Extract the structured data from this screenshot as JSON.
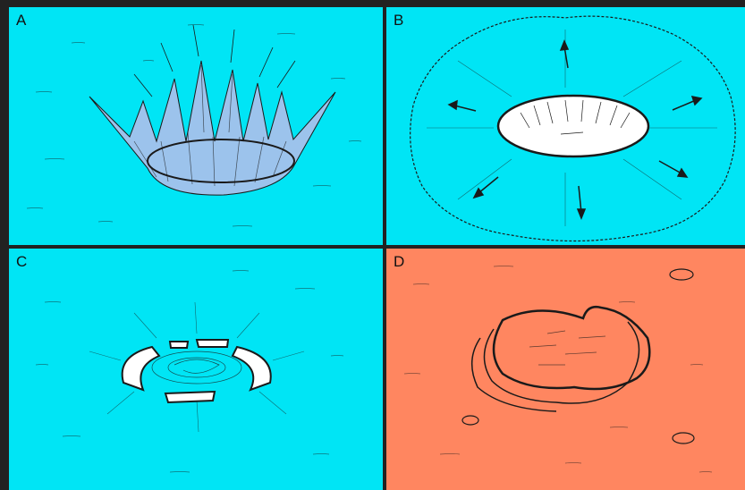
{
  "panels": [
    {
      "id": "A",
      "label": "A",
      "fill": "#00e5f5"
    },
    {
      "id": "B",
      "label": "B",
      "fill": "#00e5f5"
    },
    {
      "id": "C",
      "label": "C",
      "fill": "#00e5f5"
    },
    {
      "id": "D",
      "label": "D",
      "fill": "#ff8660"
    }
  ],
  "colors": {
    "water": "#00e5f5",
    "land": "#ff8660",
    "ink": "#1a1a1a",
    "border": "#222222",
    "ice": "#9cc3ec"
  }
}
